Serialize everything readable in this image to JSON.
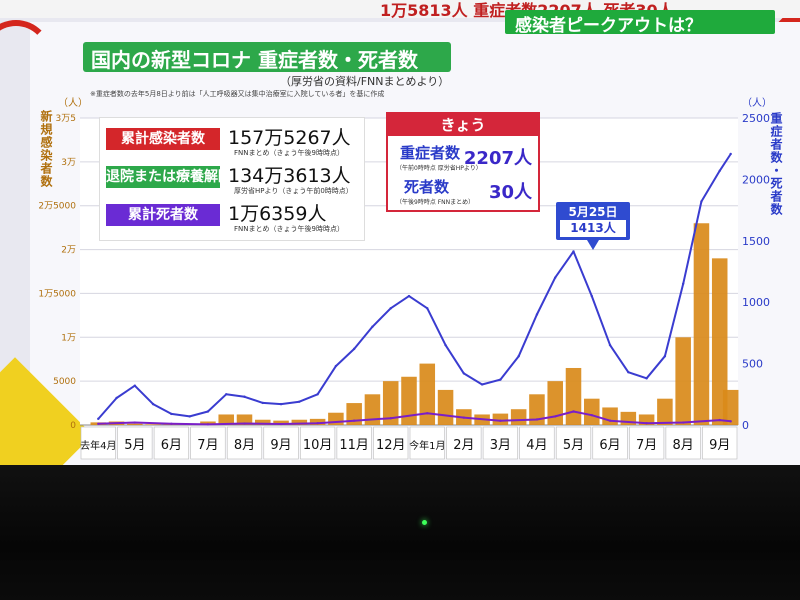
{
  "broadcast": {
    "ticker_text": "1万5813人  重症者数2207人  死者30人",
    "banner": "感染者ピークアウトは？"
  },
  "header": {
    "title": "国内の新型コロナ 重症者数・死者数",
    "source": "（厚労省の資料/FNNまとめより）",
    "footnote": "※重症者数の去年5月8日より前は「人工呼吸器又は集中治療室に入院している者」を基に作成"
  },
  "stats": [
    {
      "label": "累計感染者数",
      "value": "157万5267人",
      "note": "FNNまとめ（きょう午後9時時点）",
      "color": "#d4262a"
    },
    {
      "label": "退院または療養解除",
      "value": "134万3613人",
      "note": "厚労省HPより（きょう午前0時時点）",
      "color": "#2da84a"
    },
    {
      "label": "累計死者数",
      "value": "1万6359人",
      "note": "FNNまとめ（きょう午後9時時点）",
      "color": "#6a2bd4"
    }
  ],
  "today": {
    "heading": "きょう",
    "severe_label": "重症者数",
    "severe_value": "2207人",
    "severe_note": "（午前0時時点 厚労省HPより）",
    "deaths_label": "死者数",
    "deaths_value": "30人",
    "deaths_note": "（午後9時時点 FNNまとめ）"
  },
  "callout": {
    "date": "5月25日",
    "value": "1413人"
  },
  "chart_data": {
    "type": "bar+line",
    "x_tick_labels": [
      "去年4月",
      "5月",
      "6月",
      "7月",
      "8月",
      "9月",
      "10月",
      "11月",
      "12月",
      "今年1月",
      "2月",
      "3月",
      "4月",
      "5月",
      "6月",
      "7月",
      "8月",
      "9月"
    ],
    "left_axis": {
      "title": "新規感染者数",
      "unit": "（人）",
      "ylim": [
        0,
        35000
      ],
      "ticks": [
        0,
        5000,
        10000,
        15000,
        20000,
        25000,
        30000,
        35000
      ],
      "tick_labels": [
        "0",
        "5000",
        "1万",
        "1万5000",
        "2万",
        "2万5000",
        "3万",
        "3万5"
      ]
    },
    "right_axis": {
      "title": "重症者数・死者数",
      "unit": "（人）",
      "ylim": [
        0,
        2500
      ],
      "ticks": [
        0,
        500,
        1000,
        1500,
        2000,
        2500
      ],
      "tick_labels": [
        "0",
        "500",
        "1000",
        "1500",
        "2000",
        "2500"
      ]
    },
    "series": [
      {
        "name": "新規感染者数",
        "kind": "bar",
        "axis": "left",
        "color": "#d98a1a",
        "x": [
          0,
          0.5,
          1,
          1.5,
          2,
          2.5,
          3,
          3.5,
          4,
          4.5,
          5,
          5.5,
          6,
          6.5,
          7,
          7.5,
          8,
          8.5,
          9,
          9.5,
          10,
          10.5,
          11,
          11.5,
          12,
          12.5,
          13,
          13.5,
          14,
          14.5,
          15,
          15.5,
          16,
          16.5,
          17,
          17.3
        ],
        "values": [
          300,
          400,
          150,
          80,
          50,
          120,
          400,
          1200,
          1200,
          600,
          500,
          600,
          700,
          1400,
          2500,
          3500,
          5000,
          5500,
          7000,
          4000,
          1800,
          1200,
          1300,
          1800,
          3500,
          5000,
          6500,
          3000,
          2000,
          1500,
          1200,
          3000,
          10000,
          23000,
          19000,
          4000
        ]
      },
      {
        "name": "重症者数",
        "kind": "line",
        "axis": "right",
        "color": "#3a3cd0",
        "x": [
          0,
          0.5,
          1,
          1.5,
          2,
          2.5,
          3,
          3.5,
          4,
          4.5,
          5,
          5.5,
          6,
          6.5,
          7,
          7.5,
          8,
          8.5,
          9,
          9.5,
          10,
          10.5,
          11,
          11.5,
          12,
          12.5,
          13,
          13.5,
          14,
          14.5,
          15,
          15.5,
          16,
          16.5,
          17,
          17.3
        ],
        "values": [
          50,
          220,
          320,
          170,
          90,
          70,
          110,
          250,
          230,
          180,
          170,
          190,
          250,
          480,
          620,
          800,
          950,
          1050,
          950,
          650,
          420,
          330,
          370,
          560,
          900,
          1200,
          1413,
          1050,
          650,
          430,
          380,
          560,
          1150,
          1820,
          2070,
          2207
        ]
      },
      {
        "name": "死者数",
        "kind": "line",
        "axis": "right",
        "color": "#7a1fc8",
        "x": [
          0,
          1,
          2,
          3,
          4,
          5,
          6,
          7,
          8,
          9,
          10,
          11,
          12,
          12.5,
          13,
          13.5,
          14,
          15,
          16,
          17,
          17.3
        ],
        "values": [
          10,
          20,
          10,
          5,
          12,
          8,
          15,
          35,
          55,
          95,
          60,
          35,
          45,
          70,
          110,
          80,
          35,
          15,
          20,
          40,
          30
        ]
      }
    ]
  }
}
